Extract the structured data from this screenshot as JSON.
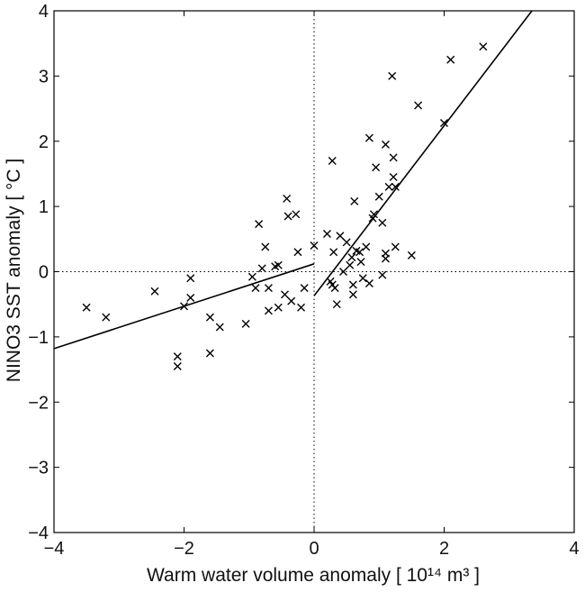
{
  "chart_data": {
    "type": "scatter",
    "xlabel": "Warm water volume anomaly [ 10¹⁴ m³ ]",
    "ylabel": "NINO3 SST anomaly [ °C ]",
    "xlim": [
      -4,
      4
    ],
    "ylim": [
      -4,
      4
    ],
    "xticks": [
      "−4",
      "−2",
      "0",
      "2",
      "4"
    ],
    "yticks": [
      "−4",
      "−3",
      "−2",
      "−1",
      "0",
      "1",
      "2",
      "3",
      "4"
    ],
    "grid": false,
    "reference_lines": [
      "x = 0 (dotted)",
      "y = 0 (dotted)"
    ],
    "marker": "x",
    "points": [
      [
        -3.5,
        -0.55
      ],
      [
        -3.2,
        -0.7
      ],
      [
        -2.45,
        -0.3
      ],
      [
        -2.1,
        -1.3
      ],
      [
        -2.1,
        -1.45
      ],
      [
        -2.0,
        -0.53
      ],
      [
        -1.9,
        -0.4
      ],
      [
        -1.9,
        -0.1
      ],
      [
        -1.6,
        -0.7
      ],
      [
        -1.6,
        -1.25
      ],
      [
        -1.45,
        -0.85
      ],
      [
        -1.05,
        -0.8
      ],
      [
        -0.95,
        -0.08
      ],
      [
        -0.9,
        -0.25
      ],
      [
        -0.85,
        0.73
      ],
      [
        -0.8,
        0.05
      ],
      [
        -0.75,
        0.38
      ],
      [
        -0.7,
        -0.25
      ],
      [
        -0.7,
        -0.6
      ],
      [
        -0.6,
        0.08
      ],
      [
        -0.55,
        0.1
      ],
      [
        -0.55,
        -0.55
      ],
      [
        -0.45,
        -0.35
      ],
      [
        -0.42,
        1.12
      ],
      [
        -0.4,
        0.85
      ],
      [
        -0.35,
        -0.45
      ],
      [
        -0.28,
        0.88
      ],
      [
        -0.25,
        0.3
      ],
      [
        -0.2,
        -0.55
      ],
      [
        -0.15,
        -0.25
      ],
      [
        0.0,
        0.4
      ],
      [
        0.2,
        0.58
      ],
      [
        0.25,
        -0.15
      ],
      [
        0.28,
        -0.2
      ],
      [
        0.28,
        1.7
      ],
      [
        0.3,
        0.3
      ],
      [
        0.32,
        -0.25
      ],
      [
        0.35,
        -0.5
      ],
      [
        0.4,
        0.55
      ],
      [
        0.45,
        0.0
      ],
      [
        0.5,
        0.45
      ],
      [
        0.55,
        0.1
      ],
      [
        0.58,
        0.22
      ],
      [
        0.6,
        -0.2
      ],
      [
        0.6,
        -0.35
      ],
      [
        0.62,
        1.08
      ],
      [
        0.65,
        0.32
      ],
      [
        0.7,
        0.3
      ],
      [
        0.72,
        0.15
      ],
      [
        0.75,
        -0.1
      ],
      [
        0.8,
        0.38
      ],
      [
        0.85,
        2.05
      ],
      [
        0.85,
        -0.18
      ],
      [
        0.9,
        0.82
      ],
      [
        0.92,
        0.88
      ],
      [
        0.95,
        1.6
      ],
      [
        1.0,
        1.15
      ],
      [
        1.05,
        0.75
      ],
      [
        1.05,
        -0.05
      ],
      [
        1.1,
        1.95
      ],
      [
        1.1,
        0.28
      ],
      [
        1.1,
        0.2
      ],
      [
        1.15,
        1.3
      ],
      [
        1.2,
        3.0
      ],
      [
        1.22,
        1.75
      ],
      [
        1.22,
        1.45
      ],
      [
        1.25,
        1.3
      ],
      [
        1.25,
        0.38
      ],
      [
        1.5,
        0.25
      ],
      [
        1.6,
        2.55
      ],
      [
        2.0,
        2.28
      ],
      [
        2.1,
        3.25
      ],
      [
        2.6,
        3.45
      ]
    ],
    "fit_lines": [
      {
        "x": [
          -4,
          0
        ],
        "y": [
          -1.18,
          0.12
        ]
      },
      {
        "x": [
          0,
          3.35
        ],
        "y": [
          -0.37,
          4.0
        ]
      }
    ]
  }
}
